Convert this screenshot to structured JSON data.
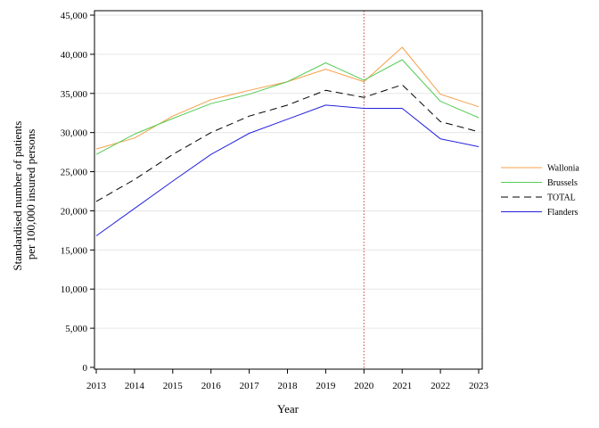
{
  "chart_data": {
    "type": "line",
    "xlabel": "Year",
    "ylabel_lines": [
      "Standardised number of patients",
      "per 100,000 insured persons"
    ],
    "x": [
      2013,
      2014,
      2015,
      2016,
      2017,
      2018,
      2019,
      2020,
      2021,
      2022,
      2023
    ],
    "x_tick_labels": [
      "2013",
      "2014",
      "2015",
      "2016",
      "2017",
      "2018",
      "2019",
      "2020",
      "2021",
      "2022",
      "2023"
    ],
    "xlim": [
      2013,
      2023
    ],
    "ylim": [
      0,
      45000
    ],
    "y_ticks": [
      0,
      5000,
      10000,
      15000,
      20000,
      25000,
      30000,
      35000,
      40000,
      45000
    ],
    "y_tick_labels": [
      "0",
      "5,000",
      "10,000",
      "15,000",
      "20,000",
      "25,000",
      "30,000",
      "35,000",
      "40,000",
      "45,000"
    ],
    "grid": "horizontal",
    "reference_line_x": 2020,
    "legend_position": "right",
    "series": [
      {
        "name": "Wallonia",
        "color": "#F5A04A",
        "dash": "solid",
        "values": [
          27900,
          29300,
          32100,
          34200,
          35400,
          36500,
          38100,
          36500,
          40900,
          34900,
          33300
        ]
      },
      {
        "name": "Brussels",
        "color": "#55CC55",
        "dash": "solid",
        "values": [
          27200,
          29800,
          31800,
          33700,
          34900,
          36500,
          38900,
          36700,
          39300,
          34000,
          31900
        ]
      },
      {
        "name": "TOTAL",
        "color": "#000000",
        "dash": "dashed",
        "values": [
          21200,
          24000,
          27200,
          30000,
          32100,
          33500,
          35400,
          34500,
          36100,
          31400,
          30100
        ]
      },
      {
        "name": "Flanders",
        "color": "#2222DD",
        "dash": "solid",
        "values": [
          16800,
          20300,
          23800,
          27200,
          29900,
          31700,
          33500,
          33100,
          33100,
          29200,
          28200
        ]
      }
    ],
    "reference_line_color": "#C0404A"
  }
}
